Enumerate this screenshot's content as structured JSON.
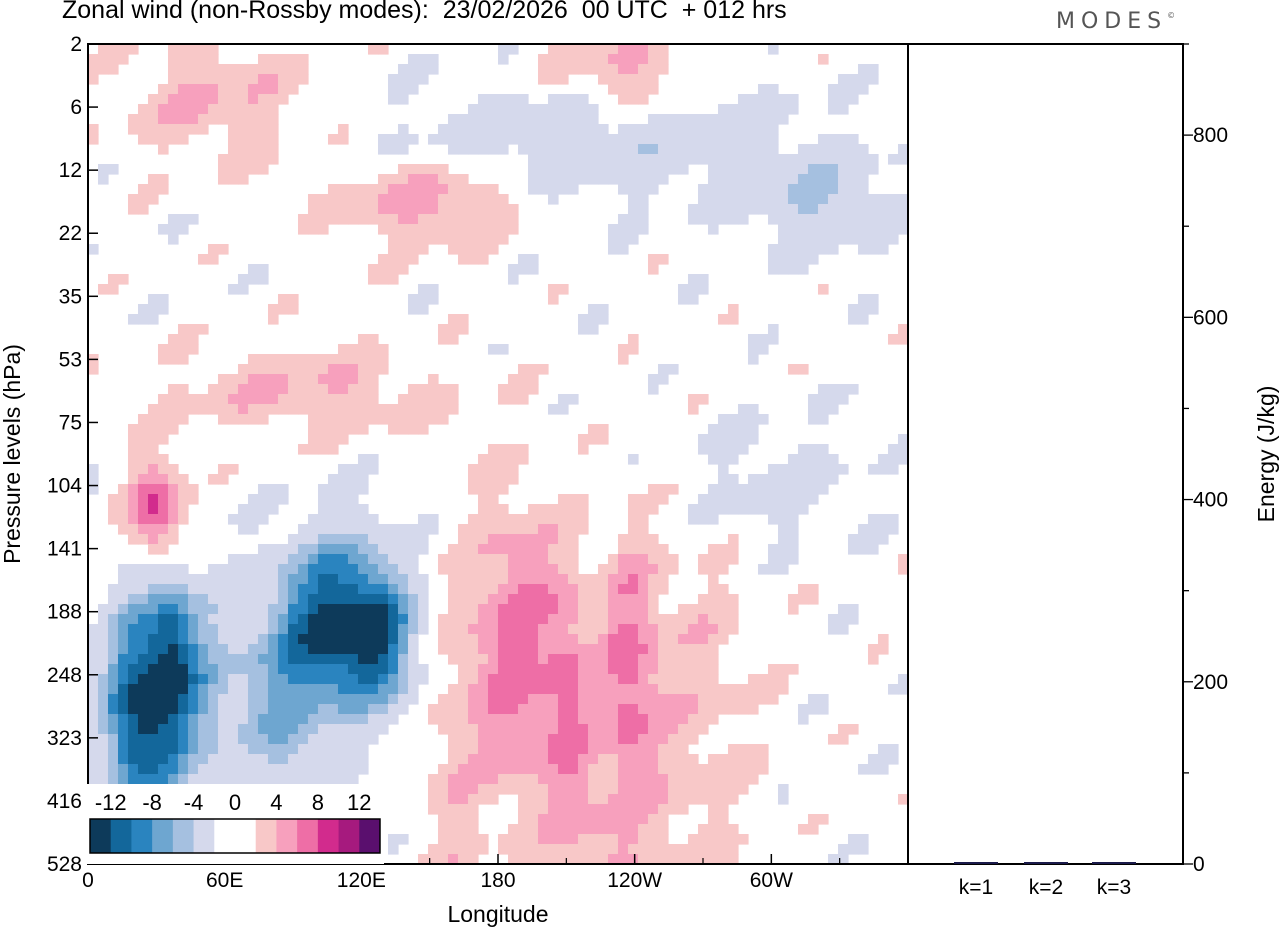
{
  "header": {
    "title": "Zonal wind (non-Rossby modes):  23/02/2026  00 UTC  + 012 hrs",
    "brand": "MODES"
  },
  "chart_data": [
    {
      "type": "heatmap",
      "title": "Zonal wind (non-Rossby modes):  23/02/2026  00 UTC  + 012 hrs",
      "xlabel": "Longitude",
      "ylabel": "Pressure levels (hPa)",
      "x_ticks": [
        "0",
        "60E",
        "120E",
        "180",
        "120W",
        "60W"
      ],
      "y_ticks": [
        "2",
        "6",
        "12",
        "22",
        "35",
        "53",
        "75",
        "104",
        "141",
        "188",
        "248",
        "323",
        "416",
        "528"
      ],
      "colorbar": {
        "labels": [
          "-12",
          "-8",
          "-4",
          "0",
          "4",
          "8",
          "12"
        ],
        "colors": [
          "#0d3a5a",
          "#13679b",
          "#2a84bf",
          "#6ea6d0",
          "#a5c0e0",
          "#d5d9ec",
          "#ffffff",
          "#ffffff",
          "#f8c8c8",
          "#f7a0bd",
          "#ee6ea6",
          "#d22b8d",
          "#a61a7e",
          "#5a0f6e"
        ]
      },
      "blobs": [
        {
          "lon": 35,
          "plev": 20.5,
          "wlon": 22,
          "wlev": 3.4,
          "val": -10
        },
        {
          "lon": 20,
          "plev": 21.6,
          "wlon": 14,
          "wlev": 3.2,
          "val": -7
        },
        {
          "lon": 37,
          "plev": 18.6,
          "wlon": 8,
          "wlev": 2.0,
          "val": -4
        },
        {
          "lon": 80,
          "plev": 20.6,
          "wlon": 22,
          "wlev": 3.4,
          "val": -4
        },
        {
          "lon": 110,
          "plev": 18.4,
          "wlon": 24,
          "wlev": 2.6,
          "val": -13
        },
        {
          "lon": 130,
          "plev": 18.9,
          "wlon": 14,
          "wlev": 2.0,
          "val": -6
        },
        {
          "lon": 90,
          "plev": 25.0,
          "wlon": 12,
          "wlev": 5.0,
          "val": -3
        },
        {
          "lon": 30,
          "plev": 14.9,
          "wlon": 12,
          "wlev": 1.6,
          "val": 8
        },
        {
          "lon": 188,
          "plev": 19.2,
          "wlon": 20,
          "wlev": 4.4,
          "val": 6
        },
        {
          "lon": 237,
          "plev": 19.8,
          "wlon": 12,
          "wlev": 4.0,
          "val": 5
        },
        {
          "lon": 211,
          "plev": 20.8,
          "wlon": 10,
          "wlev": 4.0,
          "val": 4
        },
        {
          "lon": 218,
          "plev": 28.0,
          "wlon": 14,
          "wlev": 4.0,
          "val": 2
        },
        {
          "lon": 265,
          "plev": 19.6,
          "wlon": 30,
          "wlev": 4.8,
          "val": 2
        },
        {
          "lon": 240,
          "plev": 26.2,
          "wlon": 40,
          "wlev": 5.0,
          "val": 2
        },
        {
          "lon": 160,
          "plev": 23.6,
          "wlon": 14,
          "wlev": 6.0,
          "val": 2
        },
        {
          "lon": 255,
          "plev": 3.0,
          "wlon": 70,
          "wlev": 2.0,
          "val": -2
        },
        {
          "lon": 95,
          "plev": 11.0,
          "wlon": 60,
          "wlev": 1.4,
          "val": 3
        },
        {
          "lon": 150,
          "plev": 5.0,
          "wlon": 40,
          "wlev": 1.4,
          "val": 4
        },
        {
          "lon": 320,
          "plev": 5.0,
          "wlon": 30,
          "wlev": 1.4,
          "val": -4
        },
        {
          "lon": 195,
          "plev": 3.0,
          "wlon": 70,
          "wlev": 1.6,
          "val": -2
        },
        {
          "lon": 55,
          "plev": 1.8,
          "wlon": 40,
          "wlev": 2.0,
          "val": 3
        },
        {
          "lon": 235,
          "plev": 1.0,
          "wlon": 30,
          "wlev": 1.4,
          "val": 4
        },
        {
          "lon": 300,
          "plev": 14.0,
          "wlon": 40,
          "wlev": 2.0,
          "val": -2
        }
      ]
    },
    {
      "type": "bar",
      "categories": [
        "k=1",
        "k=2",
        "k=3"
      ],
      "values": [
        2,
        1,
        1
      ],
      "ylabel": "Energy (J/kg)",
      "ylim": [
        0,
        900
      ],
      "y_ticks": [
        "0",
        "200",
        "400",
        "600",
        "800"
      ]
    }
  ]
}
